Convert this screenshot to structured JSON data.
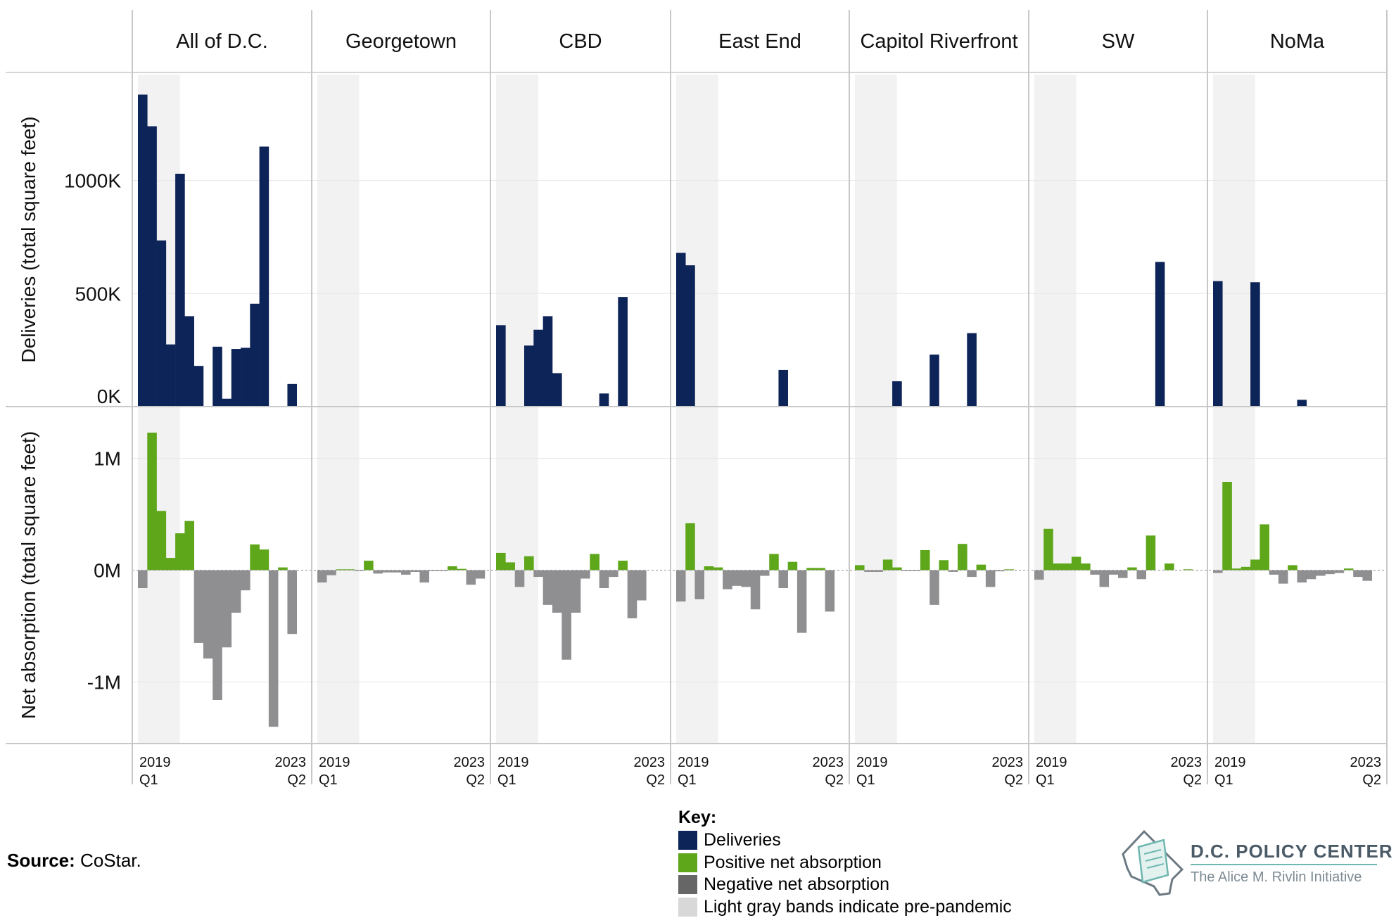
{
  "chart_data": {
    "type": "bar",
    "panels": [
      "All of D.C.",
      "Georgetown",
      "CBD",
      "East End",
      "Capitol Riverfront",
      "SW",
      "NoMa"
    ],
    "x_start_label": [
      "2019",
      "Q1"
    ],
    "x_end_label": [
      "2023",
      "Q2"
    ],
    "deliveries": {
      "ylabel": "Deliveries (total square feet)",
      "ylim": [
        0,
        1450000
      ],
      "ticks": [
        {
          "v": 0,
          "label": "0K"
        },
        {
          "v": 500000,
          "label": "500K"
        },
        {
          "v": 1000000,
          "label": "1000K"
        }
      ],
      "series": [
        [
          1380000,
          1240000,
          735000,
          275000,
          1030000,
          400000,
          180000,
          0,
          265000,
          35000,
          255000,
          260000,
          455000,
          1150000,
          0,
          0,
          100000,
          0
        ],
        [
          0,
          0,
          0,
          0,
          0,
          0,
          0,
          0,
          0,
          0,
          0,
          0,
          0,
          0,
          0,
          0,
          0,
          0
        ],
        [
          360000,
          0,
          0,
          270000,
          340000,
          400000,
          148000,
          0,
          0,
          0,
          0,
          58000,
          0,
          485000,
          0,
          0,
          0,
          0
        ],
        [
          680000,
          625000,
          0,
          0,
          0,
          0,
          0,
          0,
          0,
          0,
          0,
          162000,
          0,
          0,
          0,
          0,
          0,
          0
        ],
        [
          0,
          0,
          0,
          0,
          112000,
          0,
          0,
          0,
          230000,
          0,
          0,
          0,
          325000,
          0,
          0,
          0,
          0,
          0
        ],
        [
          0,
          0,
          0,
          0,
          0,
          0,
          0,
          0,
          0,
          0,
          0,
          0,
          0,
          640000,
          0,
          0,
          0,
          0
        ],
        [
          555000,
          0,
          0,
          0,
          550000,
          0,
          0,
          0,
          0,
          30000,
          0,
          0,
          0,
          0,
          0,
          0,
          0,
          0
        ]
      ]
    },
    "net_absorption": {
      "ylabel": "Net absorption (total square feet)",
      "ylim": [
        -1550000,
        1400000
      ],
      "ticks": [
        {
          "v": -1000000,
          "label": "-1M"
        },
        {
          "v": 0,
          "label": "0M"
        },
        {
          "v": 1000000,
          "label": "1M"
        }
      ],
      "series": [
        [
          -160000,
          1230000,
          530000,
          110000,
          330000,
          440000,
          -650000,
          -790000,
          -1160000,
          -690000,
          -380000,
          -180000,
          230000,
          185000,
          -1400000,
          25000,
          -570000,
          0
        ],
        [
          -110000,
          -45000,
          8000,
          8000,
          -8000,
          85000,
          -30000,
          -20000,
          -20000,
          -40000,
          -15000,
          -110000,
          -8000,
          -8000,
          35000,
          12000,
          -130000,
          -75000
        ],
        [
          155000,
          70000,
          -150000,
          125000,
          -60000,
          -310000,
          -380000,
          -800000,
          -380000,
          -75000,
          145000,
          -160000,
          -60000,
          85000,
          -430000,
          -270000,
          0,
          0
        ],
        [
          -280000,
          420000,
          -260000,
          35000,
          25000,
          -170000,
          -140000,
          -150000,
          -350000,
          -50000,
          145000,
          -160000,
          75000,
          -560000,
          20000,
          20000,
          -370000,
          0
        ],
        [
          45000,
          -15000,
          -15000,
          95000,
          25000,
          -8000,
          -8000,
          180000,
          -310000,
          90000,
          -15000,
          235000,
          -60000,
          50000,
          -150000,
          -10000,
          8000,
          0
        ],
        [
          -85000,
          370000,
          60000,
          60000,
          120000,
          60000,
          -40000,
          -150000,
          -40000,
          -70000,
          25000,
          -80000,
          310000,
          0,
          60000,
          0,
          8000,
          0
        ],
        [
          -25000,
          790000,
          15000,
          30000,
          95000,
          410000,
          -40000,
          -120000,
          45000,
          -110000,
          -80000,
          -50000,
          -35000,
          -25000,
          15000,
          -60000,
          -95000,
          0
        ]
      ]
    },
    "shading_note": "Light gray bands indicate pre-pandemic",
    "colors": {
      "deliveries": "#0d2458",
      "positive": "#5ea61a",
      "negative": "#8f8f92",
      "band": "#f2f2f2",
      "grid": "#e6e6e6",
      "divider": "#c8c8c8"
    }
  },
  "key": {
    "title": "Key:",
    "items": [
      {
        "label": "Deliveries",
        "color": "#0d2458"
      },
      {
        "label": "Positive net absorption",
        "color": "#5ea61a"
      },
      {
        "label": "Negative net absorption",
        "color": "#666666"
      },
      {
        "label": "Light gray bands indicate pre-pandemic",
        "color": "#d8d8d8"
      }
    ]
  },
  "source": {
    "label": "Source:",
    "text": "CoStar."
  },
  "logo": {
    "title": "D.C. POLICY CENTER",
    "subtitle": "The Alice M. Rivlin Initiative"
  }
}
